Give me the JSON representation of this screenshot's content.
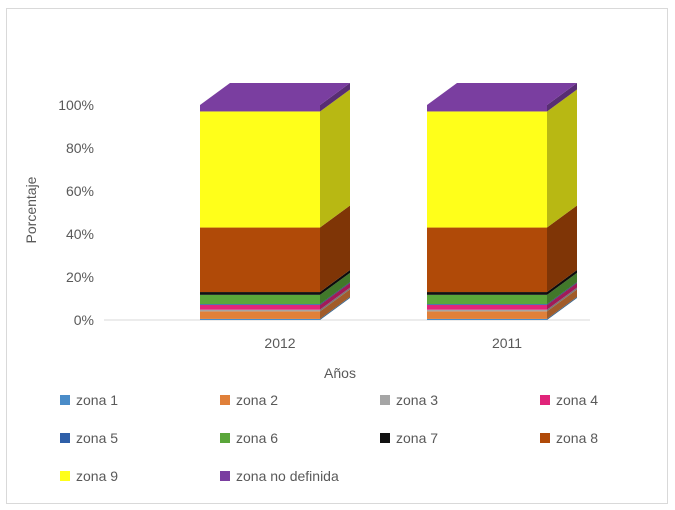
{
  "chart_data": {
    "type": "bar",
    "stacked": true,
    "three_d": true,
    "categories": [
      "2012",
      "2011"
    ],
    "xlabel": "Años",
    "ylabel": "Porcentaje",
    "ylim": [
      0,
      100
    ],
    "yticks": [
      "0%",
      "20%",
      "40%",
      "60%",
      "80%",
      "100%"
    ],
    "legend_position": "bottom",
    "series": [
      {
        "name": "zona 1",
        "color": "#4a8cc8",
        "values": [
          0.5,
          0.5
        ]
      },
      {
        "name": "zona 2",
        "color": "#e0803a",
        "values": [
          3.5,
          3.5
        ]
      },
      {
        "name": "zona 3",
        "color": "#a5a5a5",
        "values": [
          0.8,
          0.8
        ]
      },
      {
        "name": "zona 4",
        "color": "#e0247a",
        "values": [
          2.2,
          2.2
        ]
      },
      {
        "name": "zona 5",
        "color": "#2f5fa8",
        "values": [
          0.4,
          0.4
        ]
      },
      {
        "name": "zona 6",
        "color": "#5aa63a",
        "values": [
          4.3,
          4.3
        ]
      },
      {
        "name": "zona 7",
        "color": "#111111",
        "values": [
          1.3,
          1.3
        ]
      },
      {
        "name": "zona 8",
        "color": "#b04a08",
        "values": [
          30.0,
          30.0
        ]
      },
      {
        "name": "zona 9",
        "color": "#ffff1a",
        "values": [
          54.0,
          54.0
        ]
      },
      {
        "name": "zona no definida",
        "color": "#7a3ea0",
        "values": [
          3.0,
          3.0
        ]
      }
    ]
  }
}
